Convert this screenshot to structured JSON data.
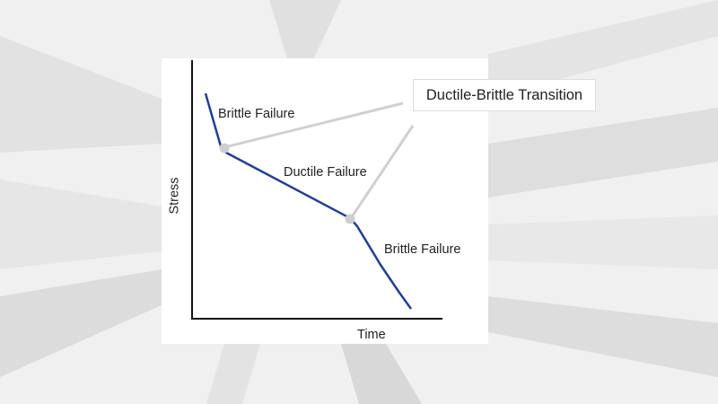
{
  "diagram": {
    "x_axis_label": "Time",
    "y_axis_label": "Stress",
    "regions": [
      {
        "label": "Brittle Failure"
      },
      {
        "label": "Ductile Failure"
      },
      {
        "label": "Brittle Failure"
      }
    ],
    "callout": "Ductile-Brittle Transition",
    "colors": {
      "curve": "#1f3f99",
      "leader": "#cfcfcf",
      "axes": "#111111"
    }
  }
}
